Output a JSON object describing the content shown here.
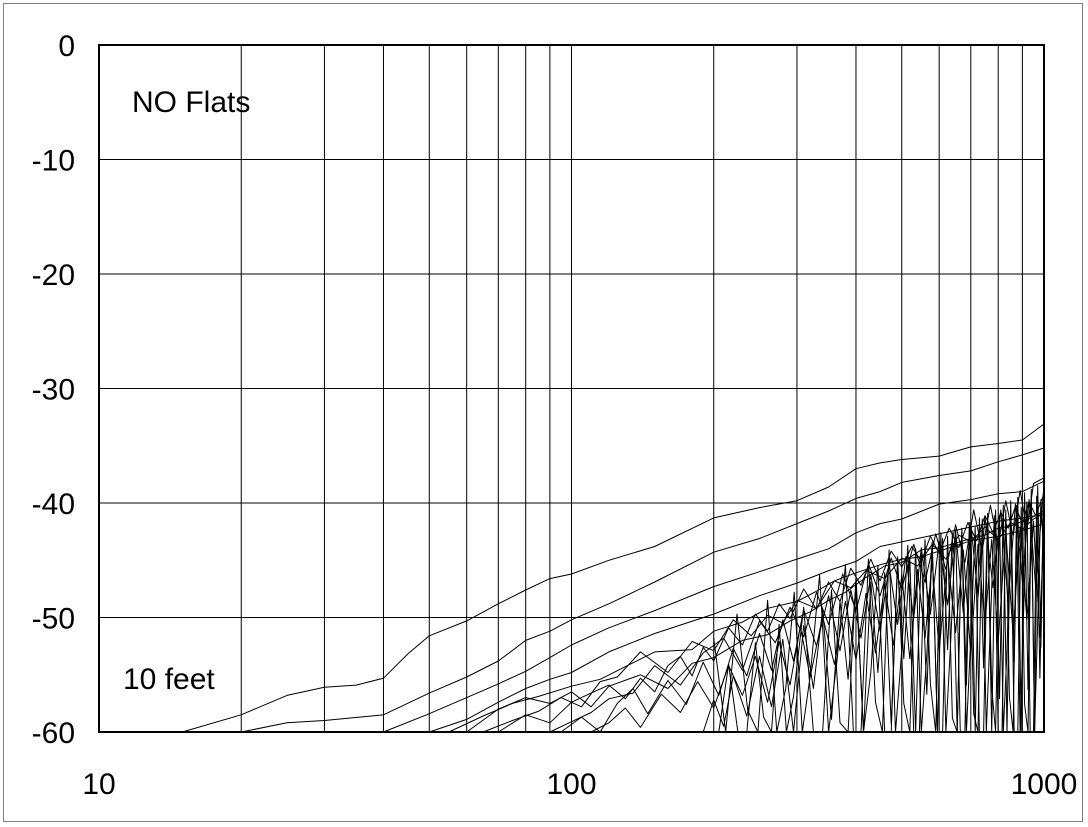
{
  "chart_data": {
    "type": "line",
    "title": "",
    "xlabel": "",
    "ylabel": "",
    "x_scale": "log",
    "xlim": [
      10,
      1000
    ],
    "ylim": [
      -60,
      0
    ],
    "grid": true,
    "x_ticks": [
      10,
      100,
      1000
    ],
    "x_tick_labels": [
      "10",
      "100",
      "1000"
    ],
    "y_ticks": [
      0,
      -10,
      -20,
      -30,
      -40,
      -50,
      -60
    ],
    "y_tick_labels": [
      "0",
      "-10",
      "-20",
      "-30",
      "-40",
      "-50",
      "-60"
    ],
    "annotations": {
      "top_left": "NO Flats",
      "bottom_left": "10 feet"
    },
    "line_color": "#000000",
    "series": [
      {
        "x": [
          15,
          20,
          25,
          30,
          35,
          40,
          45,
          50,
          60,
          70,
          80,
          90,
          100,
          120,
          150,
          200,
          250,
          300,
          350,
          400,
          450,
          500,
          600,
          700,
          800,
          900,
          1000
        ],
        "values": [
          -60,
          -58.5,
          -56.8,
          -56.1,
          -55.9,
          -55.3,
          -53.2,
          -51.6,
          -50.3,
          -48.8,
          -47.6,
          -46.6,
          -46.2,
          -45,
          -43.8,
          -41.3,
          -40.4,
          -39.8,
          -38.6,
          -37,
          -36.5,
          -36.2,
          -35.9,
          -35.1,
          -34.8,
          -34.5,
          -33.1
        ]
      },
      {
        "x": [
          20,
          25,
          30,
          40,
          50,
          60,
          70,
          80,
          90,
          100,
          120,
          150,
          200,
          250,
          300,
          350,
          400,
          450,
          500,
          600,
          700,
          800,
          900,
          1000
        ],
        "values": [
          -60,
          -59.2,
          -59,
          -58.5,
          -56.6,
          -55.2,
          -53.8,
          -52,
          -51.2,
          -50.2,
          -48.8,
          -46.9,
          -44.3,
          -43.1,
          -41.8,
          -40.7,
          -39.6,
          -39,
          -38.2,
          -37.6,
          -37.2,
          -36.4,
          -35.8,
          -35.2
        ]
      },
      {
        "x": [
          40,
          50,
          60,
          70,
          80,
          90,
          100,
          120,
          150,
          200,
          250,
          300,
          350,
          400,
          450,
          500,
          600,
          700,
          800,
          900,
          1000
        ],
        "values": [
          -60,
          -58.4,
          -57,
          -55.8,
          -54.7,
          -53.5,
          -52.4,
          -50.9,
          -49.4,
          -47.3,
          -46,
          -44.9,
          -44,
          -42.6,
          -41.8,
          -41.4,
          -40.1,
          -39.7,
          -39.2,
          -39,
          -38.1
        ]
      },
      {
        "x": [
          50,
          60,
          70,
          80,
          90,
          100,
          120,
          150,
          200,
          250,
          300,
          350,
          400,
          450,
          500,
          600,
          700,
          800,
          900,
          1000
        ],
        "values": [
          -60,
          -58.9,
          -57.4,
          -56.2,
          -55.4,
          -54.8,
          -53,
          -51.4,
          -49.7,
          -48.1,
          -47,
          -45.9,
          -45.1,
          -43.8,
          -43.4,
          -42.7,
          -42.1,
          -41.6,
          -41.3,
          -41
        ]
      },
      {
        "x": [
          55,
          65,
          75,
          85,
          100,
          115,
          130,
          150,
          180,
          200,
          230,
          260,
          300,
          330,
          360,
          400,
          450,
          500,
          550,
          600,
          700,
          800,
          900,
          1000
        ],
        "values": [
          -60,
          -58.6,
          -57.5,
          -56.9,
          -56,
          -55.4,
          -54.3,
          -53,
          -52.8,
          -51.2,
          -50.4,
          -49.2,
          -48.6,
          -47.7,
          -46.8,
          -46.1,
          -45.4,
          -44.9,
          -44.7,
          -44.2,
          -43.3,
          -42.9,
          -42.4,
          -41.8
        ]
      },
      {
        "x": [
          60,
          70,
          80,
          90,
          100,
          110,
          120,
          140,
          160,
          180,
          200,
          230,
          260,
          290,
          320,
          350,
          380,
          420,
          460,
          500,
          550,
          600,
          650,
          700,
          750,
          800,
          850,
          900,
          950,
          1000
        ],
        "values": [
          -60,
          -58,
          -57,
          -57.5,
          -56.5,
          -57.8,
          -56,
          -55,
          -56.2,
          -54,
          -53.5,
          -52,
          -51.5,
          -50.3,
          -49.5,
          -48.5,
          -47.8,
          -46.5,
          -45.5,
          -45.2,
          -44.1,
          -43.9,
          -43.5,
          -43.1,
          -42.8,
          -42.2,
          -42,
          -41.6,
          -41.2,
          -40.7
        ]
      },
      {
        "x": [
          65,
          75,
          85,
          95,
          105,
          115,
          125,
          140,
          160,
          180,
          200,
          220,
          240,
          260,
          280,
          300,
          330,
          360,
          390,
          420,
          460,
          500,
          540,
          580,
          620,
          660,
          700,
          750,
          800,
          850,
          900,
          950,
          1000
        ],
        "values": [
          -60,
          -59,
          -58.2,
          -57,
          -57.8,
          -55.6,
          -55.2,
          -53,
          -54.8,
          -52.1,
          -52.9,
          -50.2,
          -51.6,
          -49.8,
          -50.5,
          -48.5,
          -49.2,
          -46.8,
          -47.4,
          -45.9,
          -46.6,
          -44.8,
          -45.5,
          -43.6,
          -44.9,
          -42.8,
          -43.4,
          -42.1,
          -43.2,
          -41.7,
          -42.3,
          -41.4,
          -40.9
        ]
      },
      {
        "x": [
          70,
          80,
          90,
          100,
          110,
          120,
          130,
          140,
          150,
          160,
          170,
          180,
          190,
          200,
          215,
          230,
          245,
          260,
          275,
          290,
          310,
          330,
          350,
          370,
          390,
          410,
          430,
          450,
          475,
          500,
          525,
          550,
          575,
          600,
          630,
          660,
          690,
          720,
          750,
          780,
          810,
          840,
          870,
          900,
          930,
          960,
          1000
        ],
        "values": [
          -60,
          -58.5,
          -59.2,
          -57.4,
          -56.6,
          -55.9,
          -57.1,
          -55.3,
          -56.5,
          -54.2,
          -53.4,
          -55.1,
          -52.6,
          -53.8,
          -50.9,
          -52.4,
          -49.7,
          -51.2,
          -48.8,
          -50.1,
          -47.5,
          -49.3,
          -46.9,
          -48.6,
          -45.7,
          -47.2,
          -44.9,
          -46.8,
          -44.2,
          -45.6,
          -43.8,
          -45.1,
          -42.9,
          -44.4,
          -42.2,
          -43.9,
          -41.7,
          -43.3,
          -41.1,
          -42.6,
          -40.8,
          -42.2,
          -40.3,
          -41.8,
          -39.9,
          -41.1,
          -39.2
        ]
      },
      {
        "x": [
          90,
          100,
          110,
          120,
          135,
          150,
          170,
          190,
          210,
          230,
          250,
          270,
          290,
          310,
          330,
          350,
          375,
          400,
          425,
          450,
          475,
          500,
          530,
          560,
          590,
          620,
          650,
          680,
          710,
          740,
          770,
          800,
          830,
          860,
          890,
          920,
          950,
          1000
        ],
        "values": [
          -60,
          -59.1,
          -58.3,
          -57.1,
          -56.6,
          -54.2,
          -55.9,
          -53.1,
          -51.8,
          -54.6,
          -50.3,
          -52.2,
          -49.1,
          -51.7,
          -47.8,
          -50.6,
          -46.2,
          -49.4,
          -45.3,
          -48.1,
          -44.8,
          -47.5,
          -43.6,
          -46.9,
          -42.7,
          -45.8,
          -41.9,
          -45.2,
          -40.6,
          -44.1,
          -40.2,
          -43.7,
          -39.8,
          -42.9,
          -38.9,
          -42.4,
          -38.3,
          -37.8
        ]
      },
      {
        "x": [
          95,
          105,
          115,
          125,
          135,
          145,
          160,
          175,
          190,
          205,
          220,
          235,
          250,
          265,
          280,
          295,
          310,
          330,
          350,
          370,
          390,
          410,
          430,
          450,
          470,
          490,
          510,
          530,
          550,
          575,
          600,
          625,
          650,
          675,
          700,
          725,
          750,
          780,
          810,
          840,
          870,
          900,
          930,
          960,
          1000
        ],
        "values": [
          -60,
          -58.7,
          -60,
          -57.5,
          -56.2,
          -58.4,
          -55.5,
          -57.6,
          -53.9,
          -56.8,
          -52.7,
          -55.1,
          -51.4,
          -54.6,
          -50.2,
          -53.8,
          -49.3,
          -52.5,
          -48.1,
          -52.9,
          -47.6,
          -51.8,
          -46.3,
          -51.2,
          -45.4,
          -50.6,
          -44.7,
          -50.1,
          -43.9,
          -49.7,
          -43.3,
          -48.9,
          -42.5,
          -49.6,
          -41.8,
          -48.2,
          -41.2,
          -47.4,
          -40.6,
          -48.8,
          -40.1,
          -46.9,
          -39.7,
          -47.3,
          -38.4
        ]
      },
      {
        "x": [
          110,
          120,
          130,
          140,
          155,
          170,
          185,
          200,
          215,
          230,
          245,
          260,
          275,
          290,
          305,
          320,
          340,
          360,
          380,
          400,
          420,
          440,
          460,
          480,
          500,
          520,
          540,
          560,
          580,
          600,
          625,
          650,
          675,
          700,
          725,
          750,
          775,
          800,
          830,
          860,
          890,
          920,
          950,
          980,
          1000
        ],
        "values": [
          -60,
          -59.2,
          -57.9,
          -59.6,
          -56.7,
          -58.3,
          -55.6,
          -57.9,
          -54.2,
          -56.8,
          -53.4,
          -57.4,
          -52.1,
          -55.9,
          -50.8,
          -55.2,
          -49.9,
          -54.1,
          -48.6,
          -53.7,
          -47.9,
          -53.1,
          -47.1,
          -52.4,
          -46.3,
          -53.6,
          -45.8,
          -51.8,
          -45.2,
          -52.9,
          -44.7,
          -51.3,
          -44.1,
          -53.2,
          -43.6,
          -50.6,
          -43.2,
          -52.1,
          -42.5,
          -51.4,
          -42.1,
          -50.2,
          -41.6,
          -51.7,
          -40.9
        ]
      },
      {
        "x": [
          190,
          200,
          210,
          220,
          235,
          250,
          265,
          280,
          295,
          310,
          325,
          340,
          355,
          370,
          385,
          400,
          415,
          430,
          445,
          460,
          475,
          490,
          505,
          520,
          535,
          550,
          565,
          580,
          595,
          610,
          625,
          640,
          655,
          670,
          685,
          700,
          715,
          730,
          745,
          760,
          775,
          790,
          805,
          820,
          835,
          850,
          865,
          880,
          895,
          910,
          925,
          940,
          955,
          970,
          985,
          1000
        ],
        "values": [
          -60,
          -57.2,
          -59.5,
          -55.1,
          -58.6,
          -53.4,
          -57.8,
          -51.9,
          -60,
          -50.7,
          -56.2,
          -49.3,
          -58.9,
          -48.6,
          -55.4,
          -47.2,
          -60,
          -46.9,
          -54.8,
          -46.1,
          -59.3,
          -45.5,
          -53.6,
          -44.8,
          -60,
          -44.2,
          -56.7,
          -43.5,
          -60,
          -43.1,
          -52.8,
          -42.6,
          -60,
          -42.2,
          -55.9,
          -41.8,
          -60,
          -41.3,
          -54.4,
          -40.9,
          -60,
          -40.6,
          -57.1,
          -40.2,
          -60,
          -39.8,
          -53.9,
          -39.5,
          -60,
          -39.1,
          -56.3,
          -38.8,
          -60,
          -38.5,
          -52.6,
          -38.1
        ]
      },
      {
        "x": [
          200,
          212,
          224,
          236,
          248,
          260,
          272,
          284,
          296,
          308,
          320,
          335,
          350,
          365,
          380,
          395,
          410,
          425,
          440,
          455,
          470,
          485,
          500,
          515,
          530,
          545,
          560,
          575,
          590,
          605,
          620,
          635,
          650,
          665,
          680,
          695,
          710,
          725,
          740,
          755,
          770,
          785,
          800,
          815,
          830,
          845,
          860,
          875,
          890,
          905,
          920,
          935,
          950,
          965,
          980,
          1000
        ],
        "values": [
          -51.8,
          -60,
          -49.7,
          -58.1,
          -60,
          -48.5,
          -60,
          -56.2,
          -47.8,
          -60,
          -55.1,
          -46.3,
          -60,
          -53.6,
          -45.4,
          -60,
          -60,
          -44.9,
          -57.4,
          -60,
          -44.1,
          -60,
          -52.8,
          -43.7,
          -60,
          -60,
          -43.2,
          -55.8,
          -60,
          -42.6,
          -60,
          -51.9,
          -42.3,
          -60,
          -60,
          -41.7,
          -58.4,
          -60,
          -41.4,
          -60,
          -50.6,
          -41.1,
          -60,
          -60,
          -40.6,
          -56.9,
          -60,
          -40.2,
          -60,
          -49.8,
          -39.9,
          -60,
          -60,
          -39.4,
          -55.3,
          -37.6
        ]
      },
      {
        "x": [
          205,
          215,
          225,
          235,
          245,
          255,
          265,
          275,
          285,
          295,
          310,
          325,
          340,
          355,
          370,
          385,
          400,
          415,
          430,
          445,
          460,
          475,
          490,
          505,
          520,
          535,
          550,
          565,
          580,
          595,
          610,
          625,
          640,
          655,
          670,
          685,
          700,
          715,
          730,
          745,
          760,
          775,
          790,
          805,
          820,
          835,
          850,
          865,
          880,
          895,
          910,
          925,
          940,
          955,
          970,
          985,
          1000
        ],
        "values": [
          -60,
          -54.1,
          -60,
          -60,
          -52.2,
          -58.7,
          -60,
          -50.6,
          -60,
          -56.9,
          -49.1,
          -60,
          -60,
          -47.6,
          -59.2,
          -60,
          -46.4,
          -60,
          -54.8,
          -45.5,
          -60,
          -60,
          -44.7,
          -57.5,
          -60,
          -44,
          -60,
          -53.3,
          -43.4,
          -60,
          -60,
          -42.9,
          -58.8,
          -60,
          -42.5,
          -60,
          -51.7,
          -42.1,
          -60,
          -60,
          -41.6,
          -56.1,
          -60,
          -41.2,
          -60,
          -52.9,
          -40.8,
          -60,
          -60,
          -40.4,
          -57.6,
          -60,
          -40,
          -60,
          -50.3,
          -39.7,
          -45.2
        ]
      }
    ]
  }
}
